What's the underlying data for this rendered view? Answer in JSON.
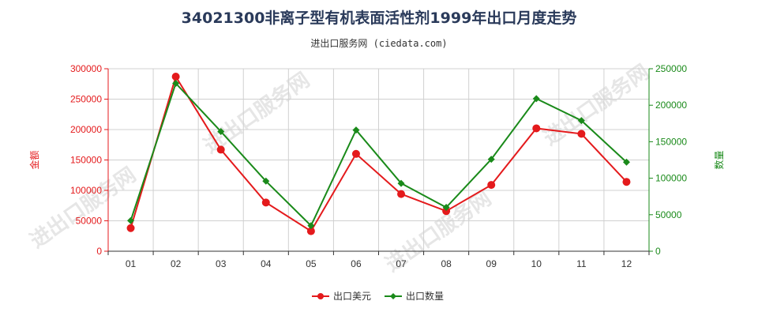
{
  "title": "34021300非离子型有机表面活性剂1999年出口月度走势",
  "subtitle": "进出口服务网 (ciedata.com)",
  "watermark": "进出口服务网",
  "colors": {
    "usd": "#e41a1c",
    "qty": "#1a8a1a",
    "grid": "#d0d0d0",
    "axis": "#333333"
  },
  "chart_data": {
    "type": "line",
    "categories": [
      "01",
      "02",
      "03",
      "04",
      "05",
      "06",
      "07",
      "08",
      "09",
      "10",
      "11",
      "12"
    ],
    "y_left": {
      "label": "金额",
      "min": 0,
      "max": 300000,
      "ticks": [
        0,
        50000,
        100000,
        150000,
        200000,
        250000,
        300000
      ],
      "color": "#e41a1c"
    },
    "y_right": {
      "label": "数量",
      "min": 0,
      "max": 250000,
      "ticks": [
        0,
        50000,
        100000,
        150000,
        200000,
        250000
      ],
      "color": "#1a8a1a"
    },
    "grid": true,
    "legend_position": "bottom-center",
    "series": [
      {
        "name": "出口美元",
        "axis": "left",
        "color": "#e41a1c",
        "values": [
          38000,
          287000,
          167000,
          80000,
          33000,
          160000,
          94000,
          66000,
          109000,
          202000,
          193000,
          114000
        ]
      },
      {
        "name": "出口数量",
        "axis": "right",
        "color": "#1a8a1a",
        "values": [
          42000,
          230000,
          164000,
          96000,
          35000,
          166000,
          93000,
          60000,
          126000,
          209000,
          179000,
          122000
        ]
      }
    ]
  }
}
